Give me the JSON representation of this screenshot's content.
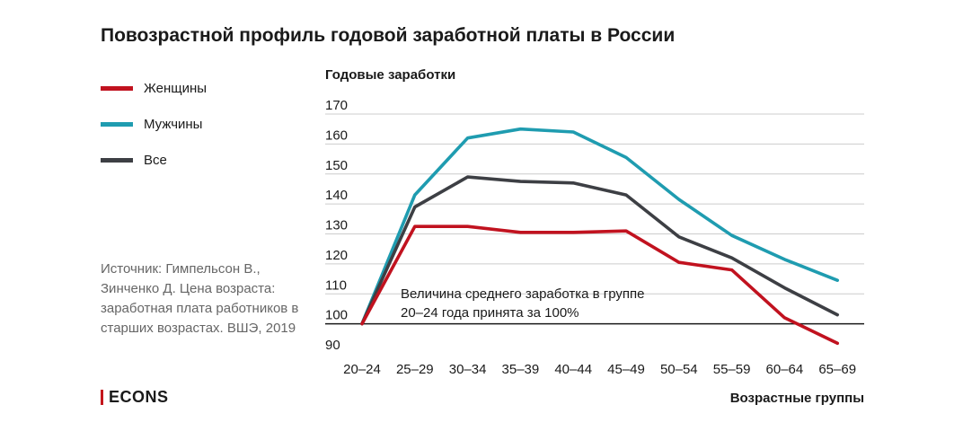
{
  "title": "Повозрастной профиль годовой заработной платы в России",
  "source": "Источник: Гимпельсон В., Зинченко Д. Цена возраста: заработная плата работников в старших возрастах. ВШЭ, 2019",
  "brand": "ECONS",
  "colors": {
    "women": "#c1121f",
    "men": "#1f9cb0",
    "all": "#3d3f44",
    "grid": "#cccccc",
    "baseline": "#1a1a1a",
    "brand_accent": "#c4161c"
  },
  "chart_data": {
    "type": "line",
    "ylabel": "Годовые заработки",
    "xlabel": "Возрастные группы",
    "ylim": [
      90,
      170
    ],
    "yticks": [
      90,
      100,
      110,
      120,
      130,
      140,
      150,
      160,
      170
    ],
    "categories": [
      "20–24",
      "25–29",
      "30–34",
      "35–39",
      "40–44",
      "45–49",
      "50–54",
      "55–59",
      "60–64",
      "65–69"
    ],
    "series": [
      {
        "name": "Женщины",
        "color": "#c1121f",
        "values": [
          100,
          132.5,
          132.5,
          130.5,
          130.5,
          131,
          120.5,
          118,
          102,
          93.5
        ]
      },
      {
        "name": "Мужчины",
        "color": "#1f9cb0",
        "values": [
          100,
          143,
          162,
          165,
          164,
          155.5,
          141.5,
          129.5,
          121.5,
          114.5
        ]
      },
      {
        "name": "Все",
        "color": "#3d3f44",
        "values": [
          100,
          139,
          149,
          147.5,
          147,
          143,
          129,
          122,
          112,
          103
        ]
      }
    ],
    "annotation": [
      "Величина среднего заработка в группе",
      "20–24 года принята за 100%"
    ],
    "grid": true,
    "legend_position": "left"
  }
}
